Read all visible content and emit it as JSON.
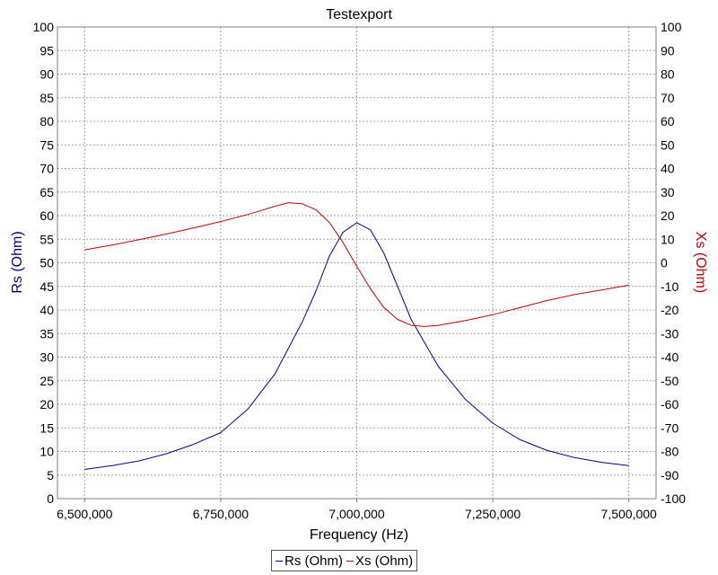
{
  "chart_data": {
    "type": "line",
    "title": "Testexport",
    "xlabel": "Frequency (Hz)",
    "ylabel_left": "Rs (Ohm)",
    "ylabel_right": "Xs (Ohm)",
    "xlim": [
      6450000,
      7550000
    ],
    "x_ticks": [
      6500000,
      6750000,
      7000000,
      7250000,
      7500000
    ],
    "x_tick_labels": [
      "6,500,000",
      "6,750,000",
      "7,000,000",
      "7,250,000",
      "7,500,000"
    ],
    "ylim_left": [
      0,
      100
    ],
    "ylim_right": [
      -100,
      100
    ],
    "left_ticks": [
      "0",
      "5",
      "10",
      "15",
      "20",
      "25",
      "30",
      "35",
      "40",
      "45",
      "50",
      "55",
      "60",
      "65",
      "70",
      "75",
      "80",
      "85",
      "90",
      "95",
      "100"
    ],
    "right_ticks": [
      "-100",
      "-90",
      "-80",
      "-70",
      "-60",
      "-50",
      "-40",
      "-30",
      "-20",
      "-10",
      "0",
      "10",
      "20",
      "30",
      "40",
      "50",
      "60",
      "70",
      "80",
      "90",
      "100"
    ],
    "grid": true,
    "legend_position": "bottom-center",
    "series": [
      {
        "name": "Rs (Ohm)",
        "axis": "left",
        "color": "#00008b",
        "x": [
          6500000,
          6550000,
          6600000,
          6650000,
          6700000,
          6750000,
          6800000,
          6850000,
          6900000,
          6925000,
          6950000,
          6975000,
          7000000,
          7025000,
          7050000,
          7075000,
          7100000,
          7150000,
          7200000,
          7250000,
          7300000,
          7350000,
          7400000,
          7450000,
          7500000
        ],
        "y": [
          6.2,
          7.0,
          8.0,
          9.5,
          11.5,
          14.0,
          19.0,
          26.5,
          37.5,
          44.0,
          51.5,
          56.5,
          58.5,
          57.0,
          52.0,
          45.0,
          38.0,
          28.0,
          21.0,
          16.0,
          12.5,
          10.2,
          8.7,
          7.7,
          7.0
        ]
      },
      {
        "name": "Xs (Ohm)",
        "axis": "right",
        "color": "#c00000",
        "x": [
          6500000,
          6550000,
          6600000,
          6650000,
          6700000,
          6750000,
          6800000,
          6825000,
          6850000,
          6875000,
          6900000,
          6925000,
          6950000,
          6975000,
          7000000,
          7025000,
          7050000,
          7075000,
          7100000,
          7125000,
          7150000,
          7200000,
          7250000,
          7300000,
          7350000,
          7400000,
          7450000,
          7500000
        ],
        "y": [
          5.5,
          7.5,
          9.8,
          12.2,
          14.8,
          17.5,
          20.5,
          22.2,
          24.0,
          25.5,
          25.0,
          22.5,
          17.0,
          8.5,
          -1.5,
          -11.0,
          -19.0,
          -24.0,
          -26.5,
          -27.0,
          -26.5,
          -24.5,
          -22.0,
          -19.0,
          -16.0,
          -13.5,
          -11.5,
          -9.5
        ]
      }
    ]
  }
}
